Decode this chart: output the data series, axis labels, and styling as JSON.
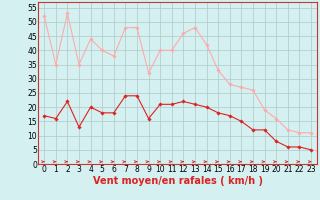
{
  "x": [
    0,
    1,
    2,
    3,
    4,
    5,
    6,
    7,
    8,
    9,
    10,
    11,
    12,
    13,
    14,
    15,
    16,
    17,
    18,
    19,
    20,
    21,
    22,
    23
  ],
  "wind_avg": [
    17,
    16,
    22,
    13,
    20,
    18,
    18,
    24,
    24,
    16,
    21,
    21,
    22,
    21,
    20,
    18,
    17,
    15,
    12,
    12,
    8,
    6,
    6,
    5
  ],
  "wind_gust": [
    52,
    35,
    53,
    35,
    44,
    40,
    38,
    48,
    48,
    32,
    40,
    40,
    46,
    48,
    42,
    33,
    28,
    27,
    26,
    19,
    16,
    12,
    11,
    11
  ],
  "xlabel": "Vent moyen/en rafales ( km/h )",
  "ylim": [
    0,
    57
  ],
  "xlim": [
    -0.5,
    23.5
  ],
  "yticks": [
    0,
    5,
    10,
    15,
    20,
    25,
    30,
    35,
    40,
    45,
    50,
    55
  ],
  "xticks": [
    0,
    1,
    2,
    3,
    4,
    5,
    6,
    7,
    8,
    9,
    10,
    11,
    12,
    13,
    14,
    15,
    16,
    17,
    18,
    19,
    20,
    21,
    22,
    23
  ],
  "bg_color": "#d4f0f0",
  "grid_color": "#b0c8c8",
  "line_avg_color": "#dd2222",
  "line_gust_color": "#ffaaaa",
  "arrow_color": "#dd2222",
  "xlabel_color": "#dd2222",
  "xlabel_fontsize": 7,
  "tick_fontsize": 5.5
}
